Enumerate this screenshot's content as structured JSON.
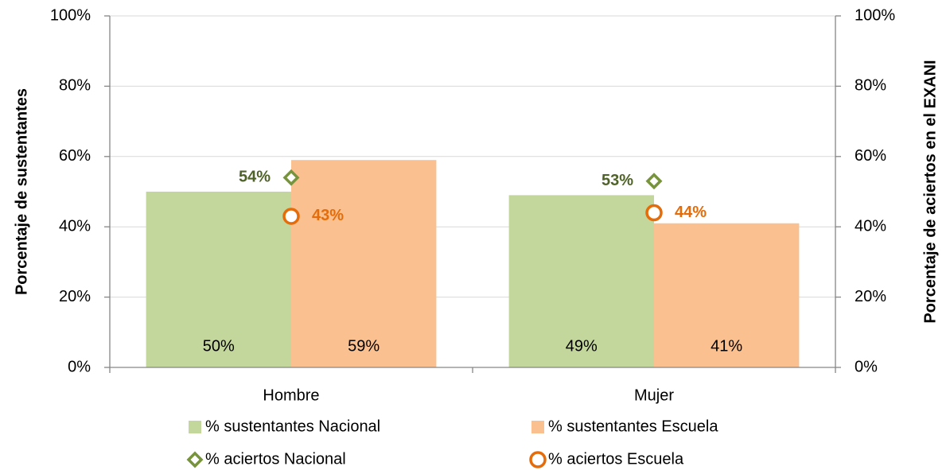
{
  "chart_data": {
    "type": "bar",
    "categories": [
      "Hombre",
      "Mujer"
    ],
    "y_label": "Porcentaje de sustentantes",
    "y2_label": "Porcentaje de aciertos en el EXANI",
    "ylim": [
      0,
      100
    ],
    "yticks": [
      {
        "value": 0,
        "label": "0%"
      },
      {
        "value": 20,
        "label": "20%"
      },
      {
        "value": 40,
        "label": "40%"
      },
      {
        "value": 60,
        "label": "60%"
      },
      {
        "value": 80,
        "label": "80%"
      },
      {
        "value": 100,
        "label": "100%"
      }
    ],
    "y2lim": [
      0,
      100
    ],
    "y2ticks": [
      {
        "value": 0,
        "label": "0%"
      },
      {
        "value": 20,
        "label": "20%"
      },
      {
        "value": 40,
        "label": "40%"
      },
      {
        "value": 60,
        "label": "60%"
      },
      {
        "value": 80,
        "label": "80%"
      },
      {
        "value": 100,
        "label": "100%"
      }
    ],
    "grid": true,
    "legend": "bottom",
    "series": [
      {
        "name": "% sustentantes Nacional",
        "type": "bar",
        "color": "#c3d69b",
        "values": [
          50,
          49
        ],
        "value_labels": [
          "50%",
          "49%"
        ]
      },
      {
        "name": "% sustentantes Escuela",
        "type": "bar",
        "color": "#fac090",
        "values": [
          59,
          41
        ],
        "value_labels": [
          "59%",
          "41%"
        ]
      },
      {
        "name": "% aciertos Nacional",
        "type": "scatter",
        "marker": "diamond",
        "axis": "y2",
        "color": "#77933c",
        "label_color": "#4f6228",
        "values": [
          54,
          53
        ],
        "value_labels": [
          "54%",
          "53%"
        ]
      },
      {
        "name": "% aciertos Escuela",
        "type": "scatter",
        "marker": "circle",
        "axis": "y2",
        "color": "#e46c0a",
        "label_color": "#e46c0a",
        "values": [
          43,
          44
        ],
        "value_labels": [
          "43%",
          "44%"
        ]
      }
    ]
  }
}
